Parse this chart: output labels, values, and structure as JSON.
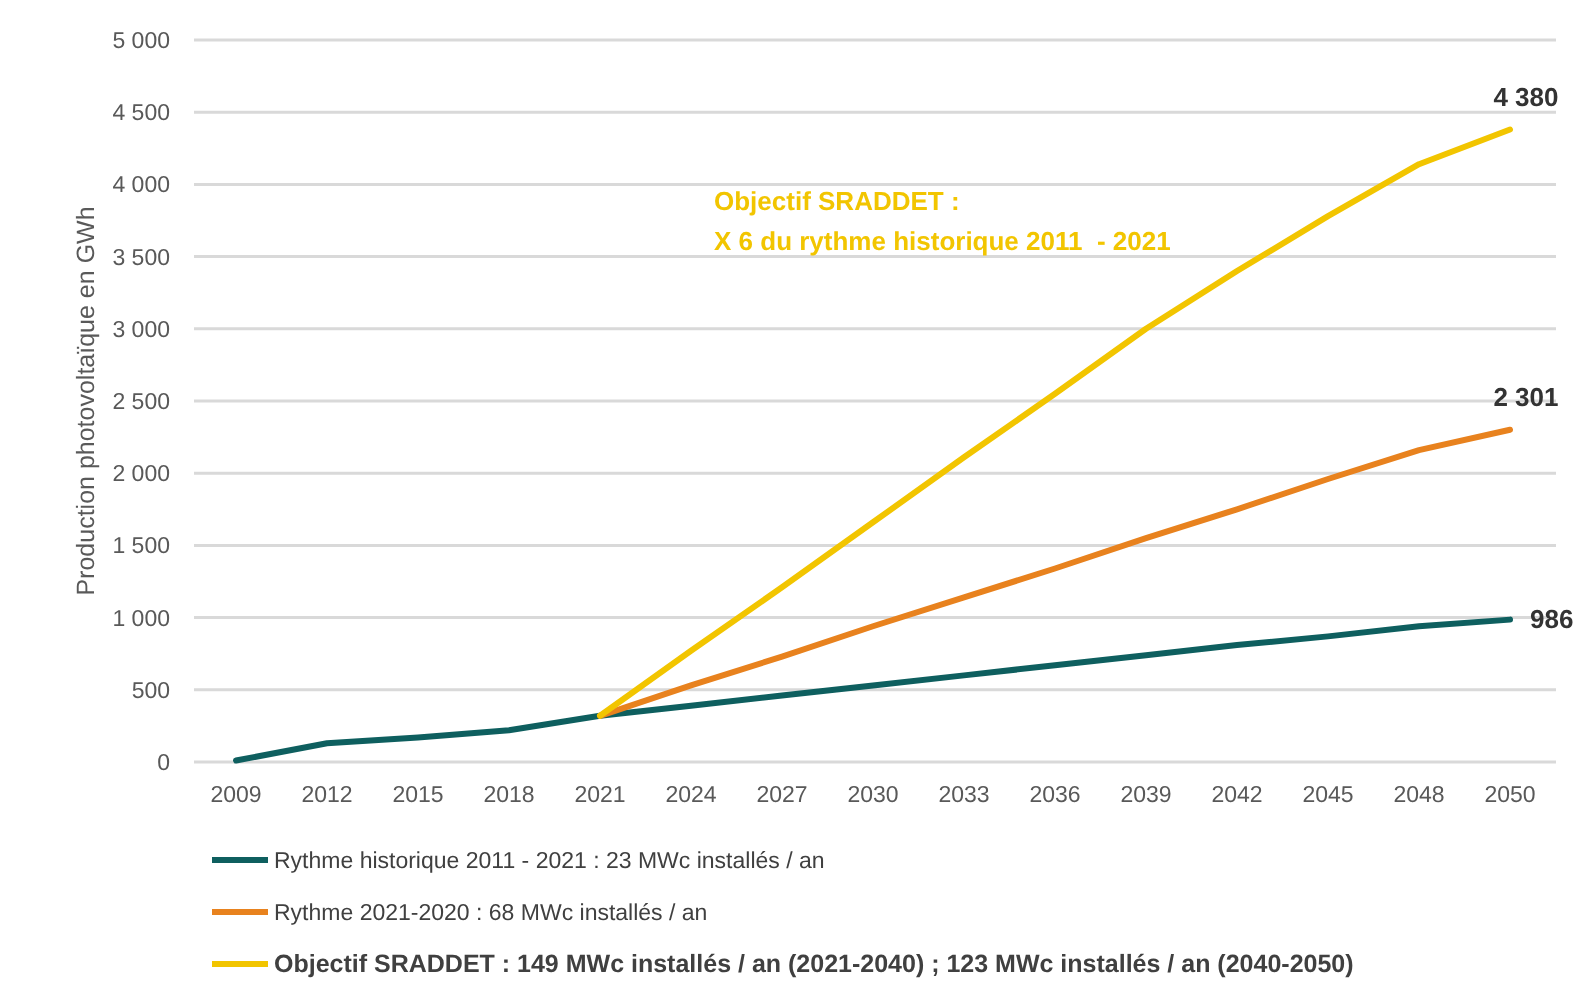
{
  "chart_data": {
    "type": "line",
    "ylabel": "Production photovoltaïque  en GWh",
    "categories": [
      "2009",
      "2012",
      "2015",
      "2018",
      "2021",
      "2024",
      "2027",
      "2030",
      "2033",
      "2036",
      "2039",
      "2042",
      "2045",
      "2048",
      "2050"
    ],
    "ylim": [
      0,
      5000
    ],
    "yticks": [
      {
        "value": 0,
        "label": "0"
      },
      {
        "value": 500,
        "label": "500"
      },
      {
        "value": 1000,
        "label": "1 000"
      },
      {
        "value": 1500,
        "label": "1 500"
      },
      {
        "value": 2000,
        "label": "2 000"
      },
      {
        "value": 2500,
        "label": "2 500"
      },
      {
        "value": 3000,
        "label": "3 000"
      },
      {
        "value": 3500,
        "label": "3 500"
      },
      {
        "value": 4000,
        "label": "4 000"
      },
      {
        "value": 4500,
        "label": "4 500"
      },
      {
        "value": 5000,
        "label": "5 000"
      }
    ],
    "grid": "y",
    "legend": "bottom",
    "marker": "none",
    "line_style": "solid",
    "series": [
      {
        "name": "Rythme historique 2011 - 2021 : 23 MWc installés / an",
        "color": "#0e5f5f",
        "values": [
          10,
          130,
          170,
          220,
          320,
          390,
          460,
          530,
          600,
          670,
          740,
          810,
          870,
          940,
          986
        ],
        "value_labels": [
          null,
          null,
          null,
          null,
          null,
          null,
          null,
          null,
          null,
          null,
          null,
          null,
          null,
          null,
          "986"
        ]
      },
      {
        "name": "Rythme 2021-2020 : 68 MWc installés / an",
        "color": "#e8821e",
        "values": [
          null,
          null,
          null,
          null,
          320,
          530,
          730,
          940,
          1140,
          1340,
          1550,
          1750,
          1960,
          2160,
          2301
        ],
        "value_labels": [
          null,
          null,
          null,
          null,
          null,
          null,
          null,
          null,
          null,
          null,
          null,
          null,
          null,
          null,
          "2 301"
        ]
      },
      {
        "name": "Objectif SRADDET : 149 MWc installés / an (2021-2040) ; 123 MWc installés / an (2040-2050)",
        "color": "#f2c500",
        "values": [
          null,
          null,
          null,
          null,
          320,
          770,
          1210,
          1660,
          2110,
          2550,
          3000,
          3400,
          3780,
          4140,
          4380
        ],
        "value_labels": [
          null,
          null,
          null,
          null,
          null,
          null,
          null,
          null,
          null,
          null,
          null,
          null,
          null,
          null,
          "4 380"
        ]
      }
    ],
    "annotations": [
      "Objectif SRADDET :\nX 6 du rythme historique 2011  - 2021"
    ]
  }
}
